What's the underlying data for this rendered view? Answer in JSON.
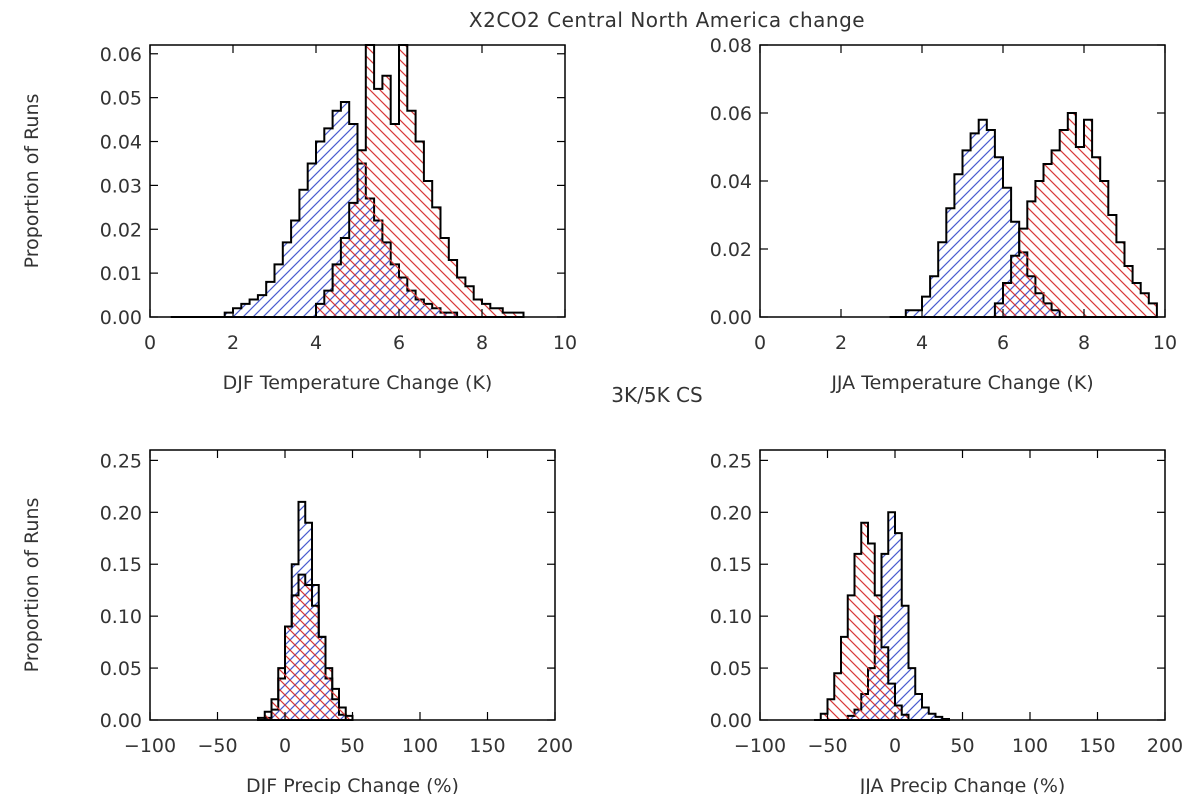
{
  "figure": {
    "title": "X2CO2 Central North America change",
    "subtitle": "3K/5K CS"
  },
  "colors": {
    "blue": "#4a5ccf",
    "red": "#d83838",
    "axis": "#000000",
    "label": "#333333"
  },
  "chart_data": [
    {
      "type": "area",
      "id": "djf-temp",
      "xlabel": "DJF Temperature Change (K)",
      "ylabel": "Proportion of Runs",
      "xlim": [
        0,
        10
      ],
      "ylim": [
        0,
        0.062
      ],
      "xticks": [
        0,
        2,
        4,
        6,
        8,
        10
      ],
      "yticks": [
        0,
        0.01,
        0.02,
        0.03,
        0.04,
        0.05,
        0.06
      ],
      "ytick_labels": [
        "0.00",
        "0.01",
        "0.02",
        "0.03",
        "0.04",
        "0.05",
        "0.06"
      ],
      "xtick_labels": [
        "0",
        "2",
        "4",
        "6",
        "8",
        "10"
      ],
      "hist_type": "histogram-step",
      "series": [
        {
          "color": "blue",
          "x": [
            0.5,
            1.0,
            1.5,
            1.8,
            2.0,
            2.2,
            2.4,
            2.6,
            2.8,
            3.0,
            3.2,
            3.4,
            3.6,
            3.8,
            4.0,
            4.2,
            4.4,
            4.6,
            4.8,
            5.0,
            5.2,
            5.4,
            5.6,
            5.8,
            6.0,
            6.2,
            6.4,
            6.6,
            6.8,
            7.0,
            7.2,
            7.4
          ],
          "y": [
            0.0,
            0.0,
            0.0,
            0.001,
            0.002,
            0.003,
            0.004,
            0.005,
            0.008,
            0.012,
            0.017,
            0.022,
            0.029,
            0.035,
            0.04,
            0.043,
            0.047,
            0.049,
            0.044,
            0.035,
            0.027,
            0.022,
            0.017,
            0.012,
            0.009,
            0.006,
            0.004,
            0.003,
            0.002,
            0.001,
            0.001,
            0.0
          ]
        },
        {
          "color": "red",
          "x": [
            3.8,
            4.0,
            4.2,
            4.4,
            4.6,
            4.8,
            5.0,
            5.2,
            5.4,
            5.6,
            5.8,
            6.0,
            6.2,
            6.4,
            6.6,
            6.8,
            7.0,
            7.2,
            7.4,
            7.6,
            7.8,
            8.0,
            8.2,
            8.5,
            9.0
          ],
          "y": [
            0.0,
            0.003,
            0.006,
            0.012,
            0.018,
            0.026,
            0.038,
            0.062,
            0.052,
            0.055,
            0.044,
            0.062,
            0.047,
            0.04,
            0.031,
            0.025,
            0.018,
            0.013,
            0.009,
            0.007,
            0.004,
            0.003,
            0.002,
            0.001,
            0.0
          ]
        }
      ]
    },
    {
      "type": "area",
      "id": "jja-temp",
      "xlabel": "JJA Temperature Change (K)",
      "ylabel": "",
      "xlim": [
        0,
        10
      ],
      "ylim": [
        0,
        0.08
      ],
      "xticks": [
        0,
        2,
        4,
        6,
        8,
        10
      ],
      "yticks": [
        0,
        0.02,
        0.04,
        0.06,
        0.08
      ],
      "ytick_labels": [
        "0.00",
        "0.02",
        "0.04",
        "0.06",
        "0.08"
      ],
      "xtick_labels": [
        "0",
        "2",
        "4",
        "6",
        "8",
        "10"
      ],
      "hist_type": "histogram-step",
      "series": [
        {
          "color": "blue",
          "x": [
            3.2,
            3.6,
            4.0,
            4.2,
            4.4,
            4.6,
            4.8,
            5.0,
            5.2,
            5.4,
            5.6,
            5.8,
            6.0,
            6.2,
            6.4,
            6.6,
            6.8,
            7.0,
            7.2,
            7.4
          ],
          "y": [
            0.0,
            0.002,
            0.006,
            0.012,
            0.022,
            0.032,
            0.042,
            0.049,
            0.054,
            0.058,
            0.055,
            0.047,
            0.038,
            0.028,
            0.019,
            0.012,
            0.007,
            0.004,
            0.002,
            0.0
          ]
        },
        {
          "color": "red",
          "x": [
            5.6,
            5.8,
            6.0,
            6.2,
            6.4,
            6.6,
            6.8,
            7.0,
            7.2,
            7.4,
            7.6,
            7.8,
            8.0,
            8.2,
            8.4,
            8.6,
            8.8,
            9.0,
            9.2,
            9.4,
            9.6,
            9.8
          ],
          "y": [
            0.0,
            0.004,
            0.01,
            0.018,
            0.026,
            0.034,
            0.04,
            0.045,
            0.049,
            0.055,
            0.06,
            0.05,
            0.058,
            0.047,
            0.04,
            0.03,
            0.022,
            0.015,
            0.01,
            0.007,
            0.004,
            0.0
          ]
        }
      ]
    },
    {
      "type": "area",
      "id": "djf-precip",
      "xlabel": "DJF Precip Change (%)",
      "ylabel": "Proportion of Runs",
      "xlim": [
        -100,
        200
      ],
      "ylim": [
        0,
        0.26
      ],
      "xticks": [
        -100,
        -50,
        0,
        50,
        100,
        150,
        200
      ],
      "yticks": [
        0,
        0.05,
        0.1,
        0.15,
        0.2,
        0.25
      ],
      "ytick_labels": [
        "0.00",
        "0.05",
        "0.10",
        "0.15",
        "0.20",
        "0.25"
      ],
      "xtick_labels": [
        "−100",
        "−50",
        "0",
        "50",
        "100",
        "150",
        "200"
      ],
      "hist_type": "histogram-step",
      "series": [
        {
          "color": "blue",
          "x": [
            -15,
            -10,
            -5,
            0,
            5,
            10,
            15,
            20,
            25,
            30,
            35,
            40,
            45
          ],
          "y": [
            0.002,
            0.01,
            0.04,
            0.09,
            0.15,
            0.21,
            0.19,
            0.13,
            0.08,
            0.04,
            0.02,
            0.005,
            0.0
          ]
        },
        {
          "color": "red",
          "x": [
            -20,
            -15,
            -10,
            -5,
            0,
            5,
            10,
            15,
            20,
            25,
            30,
            35,
            40,
            45,
            50
          ],
          "y": [
            0.002,
            0.008,
            0.02,
            0.05,
            0.09,
            0.12,
            0.14,
            0.13,
            0.11,
            0.08,
            0.05,
            0.03,
            0.012,
            0.004,
            0.0
          ]
        }
      ]
    },
    {
      "type": "area",
      "id": "jja-precip",
      "xlabel": "JJA Precip Change (%)",
      "ylabel": "",
      "xlim": [
        -100,
        200
      ],
      "ylim": [
        0,
        0.26
      ],
      "xticks": [
        -100,
        -50,
        0,
        50,
        100,
        150,
        200
      ],
      "yticks": [
        0,
        0.05,
        0.1,
        0.15,
        0.2,
        0.25
      ],
      "ytick_labels": [
        "0.00",
        "0.05",
        "0.10",
        "0.15",
        "0.20",
        "0.25"
      ],
      "xtick_labels": [
        "−100",
        "−50",
        "0",
        "50",
        "100",
        "150",
        "200"
      ],
      "hist_type": "histogram-step",
      "series": [
        {
          "color": "blue",
          "x": [
            -40,
            -35,
            -30,
            -25,
            -20,
            -15,
            -10,
            -5,
            0,
            5,
            10,
            15,
            20,
            25,
            30,
            35,
            40
          ],
          "y": [
            0.0,
            0.004,
            0.01,
            0.025,
            0.05,
            0.1,
            0.16,
            0.2,
            0.18,
            0.11,
            0.05,
            0.025,
            0.012,
            0.006,
            0.003,
            0.001,
            0.0
          ]
        },
        {
          "color": "red",
          "x": [
            -60,
            -55,
            -50,
            -45,
            -40,
            -35,
            -30,
            -25,
            -20,
            -15,
            -10,
            -5,
            0,
            5,
            10
          ],
          "y": [
            0.0,
            0.006,
            0.02,
            0.045,
            0.08,
            0.12,
            0.16,
            0.19,
            0.17,
            0.12,
            0.07,
            0.035,
            0.014,
            0.005,
            0.0
          ]
        }
      ]
    }
  ]
}
